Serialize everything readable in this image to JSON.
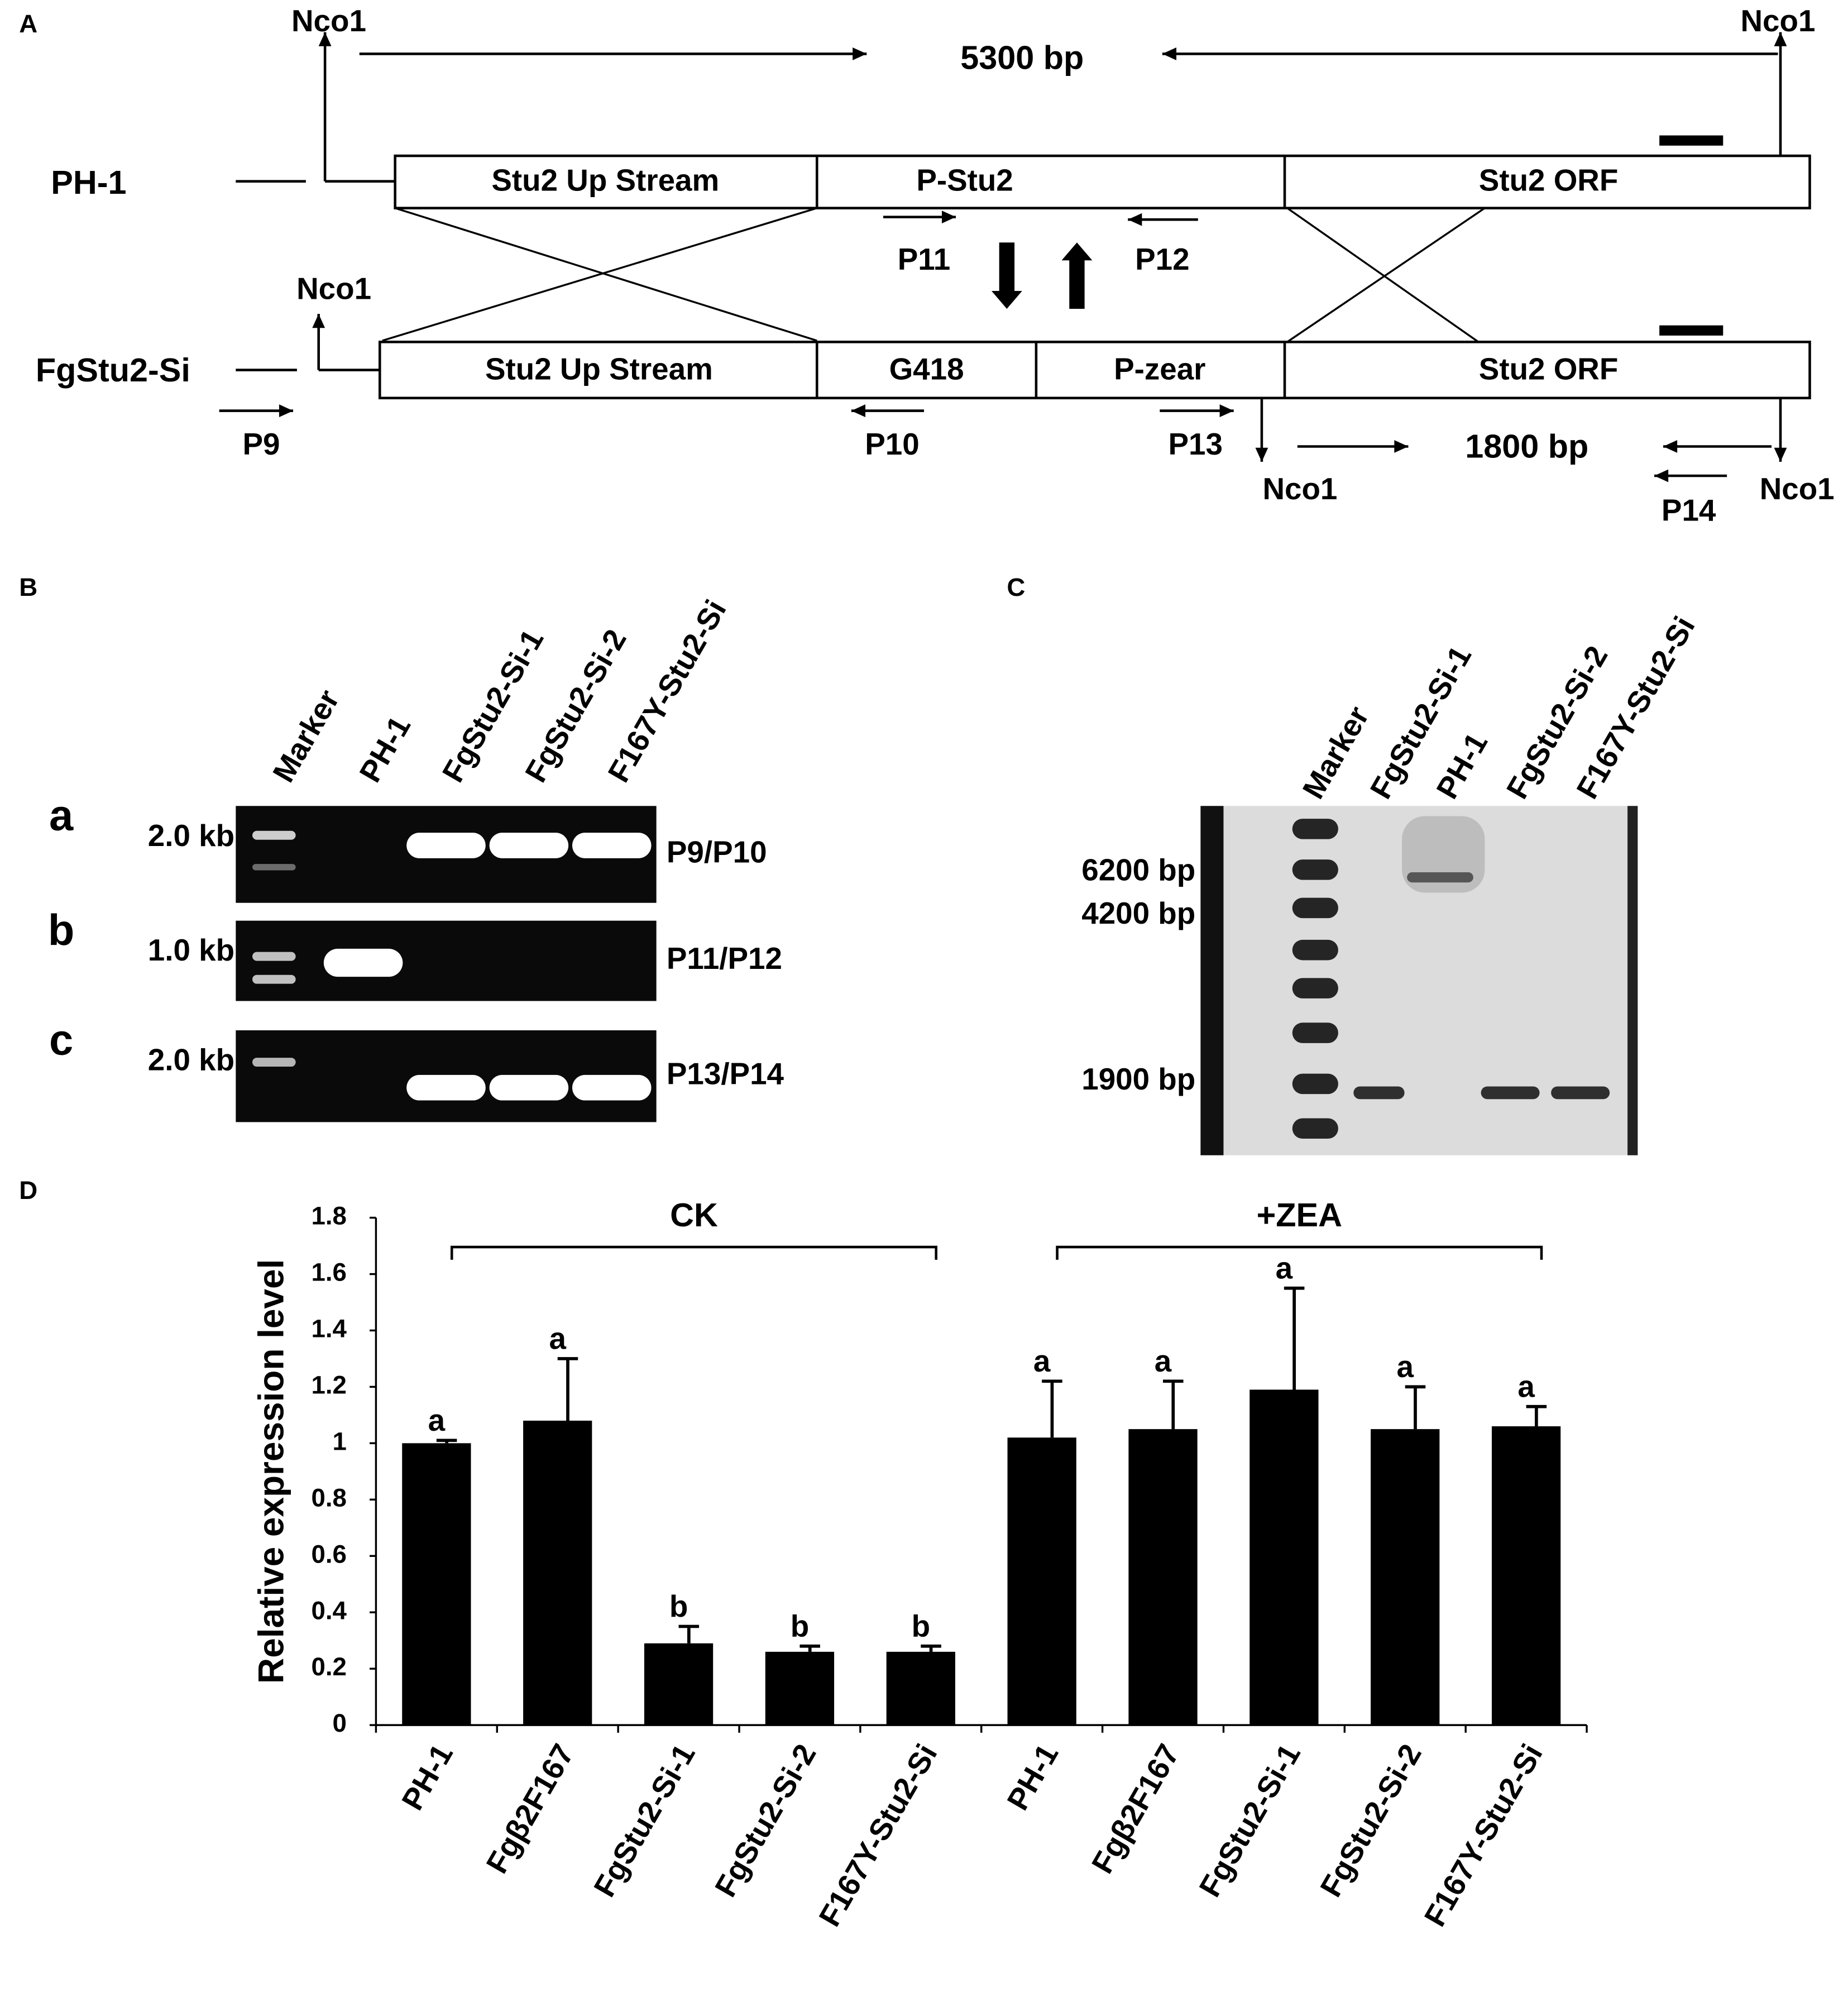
{
  "panel_a": {
    "label": "A",
    "nco1": [
      "Nco1",
      "Nco1",
      "Nco1",
      "Nco1",
      "Nco1"
    ],
    "size_top": "5300 bp",
    "size_bottom": "1800 bp",
    "strains": [
      "PH-1",
      "FgStu2-Si"
    ],
    "wild_type_boxes": [
      "Stu2 Up Stream",
      "P-Stu2",
      "Stu2 ORF"
    ],
    "mutant_boxes": [
      "Stu2 Up Stream",
      "G418",
      "P-zear",
      "Stu2 ORF"
    ],
    "primers": [
      "P9",
      "P10",
      "P11",
      "P12",
      "P13",
      "P14"
    ]
  },
  "panel_b": {
    "label": "B",
    "lanes": [
      "Marker",
      "PH-1",
      "FgStu2-Si-1",
      "FgStu2-Si-2",
      "F167Y-Stu2-Si"
    ],
    "rows": [
      {
        "letter": "a",
        "size": "2.0 kb",
        "primers": "P9/P10"
      },
      {
        "letter": "b",
        "size": "1.0 kb",
        "primers": "P11/P12"
      },
      {
        "letter": "c",
        "size": "2.0 kb",
        "primers": "P13/P14"
      }
    ]
  },
  "panel_c": {
    "label": "C",
    "lanes": [
      "Marker",
      "FgStu2-Si-1",
      "PH-1",
      "FgStu2-Si-2",
      "F167Y-Stu2-Si"
    ],
    "sizes": [
      "6200 bp",
      "4200 bp",
      "1900 bp"
    ]
  },
  "panel_d_label": "D",
  "chart_data": {
    "type": "bar",
    "y_label": "Relative expression level",
    "groups": [
      "CK",
      "+ZEA"
    ],
    "categories": [
      "PH-1",
      "Fgβ2F167",
      "FgStu2-Si-1",
      "FgStu2-Si-2",
      "F167Y-Stu2-Si",
      "PH-1",
      "Fgβ2F167",
      "FgStu2-Si-1",
      "FgStu2-Si-2",
      "F167Y-Stu2-Si"
    ],
    "values": [
      1.0,
      1.08,
      0.29,
      0.26,
      0.26,
      1.02,
      1.05,
      1.19,
      1.05,
      1.06
    ],
    "errors": [
      0.01,
      0.22,
      0.06,
      0.02,
      0.02,
      0.2,
      0.17,
      0.36,
      0.15,
      0.07
    ],
    "letters": [
      "a",
      "a",
      "b",
      "b",
      "b",
      "a",
      "a",
      "a",
      "a",
      "a"
    ],
    "color": "#000000",
    "ylim": [
      0,
      1.8
    ],
    "yticks": [
      0,
      0.2,
      0.4,
      0.6,
      0.8,
      1,
      1.2,
      1.4,
      1.6,
      1.8
    ]
  }
}
